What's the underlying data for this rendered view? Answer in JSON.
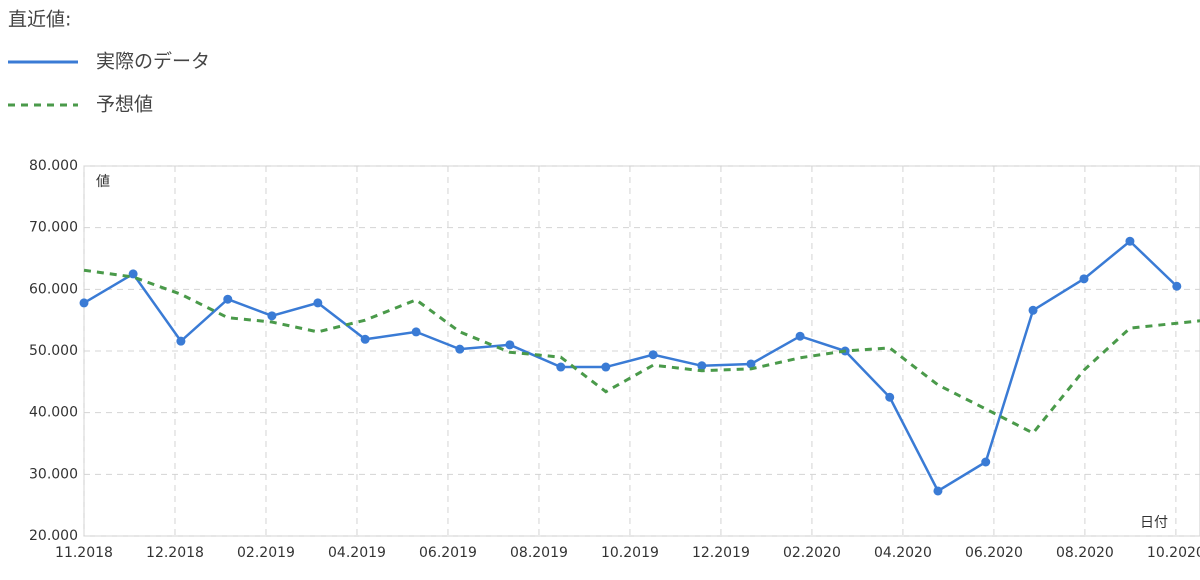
{
  "chart_data": {
    "type": "line",
    "legend_title": "直近値:",
    "y_label": "値",
    "x_label": "日付",
    "xlim": [
      0,
      24.53
    ],
    "ylim": [
      20,
      80
    ],
    "xticks": [
      {
        "value": 0,
        "label": "11.2018"
      },
      {
        "value": 2,
        "label": "12.2018"
      },
      {
        "value": 4,
        "label": "02.2019"
      },
      {
        "value": 6,
        "label": "04.2019"
      },
      {
        "value": 8,
        "label": "06.2019"
      },
      {
        "value": 10,
        "label": "08.2019"
      },
      {
        "value": 12,
        "label": "10.2019"
      },
      {
        "value": 14,
        "label": "12.2019"
      },
      {
        "value": 16,
        "label": "02.2020"
      },
      {
        "value": 18,
        "label": "04.2020"
      },
      {
        "value": 20,
        "label": "06.2020"
      },
      {
        "value": 22,
        "label": "08.2020"
      },
      {
        "value": 24,
        "label": "10.2020"
      }
    ],
    "yticks": [
      {
        "value": 20,
        "label": "20.000"
      },
      {
        "value": 30,
        "label": "30.000"
      },
      {
        "value": 40,
        "label": "40.000"
      },
      {
        "value": 50,
        "label": "50.000"
      },
      {
        "value": 60,
        "label": "60.000"
      },
      {
        "value": 70,
        "label": "70.000"
      },
      {
        "value": 80,
        "label": "80.000"
      }
    ],
    "grid": true,
    "series": [
      {
        "name": "実際のデータ",
        "color": "#3a7bd5",
        "dashed": false,
        "markers": true,
        "x": [
          0,
          1.08,
          2.13,
          3.16,
          4.13,
          5.14,
          6.18,
          7.3,
          8.26,
          9.36,
          10.48,
          11.47,
          12.51,
          13.58,
          14.66,
          15.74,
          16.73,
          17.71,
          18.77,
          19.82,
          20.86,
          21.98,
          22.99,
          24.02
        ],
        "values": [
          57.8,
          62.5,
          51.6,
          58.4,
          55.7,
          57.8,
          51.9,
          53.1,
          50.3,
          51.0,
          47.4,
          47.4,
          49.4,
          47.6,
          47.9,
          52.4,
          50.0,
          42.5,
          27.3,
          32.0,
          56.6,
          61.7,
          67.8,
          60.5
        ]
      },
      {
        "name": "予想値",
        "color": "#4a9a4a",
        "dashed": true,
        "markers": false,
        "x": [
          0,
          1.08,
          2.13,
          3.16,
          4.13,
          5.14,
          6.18,
          7.3,
          8.26,
          9.36,
          10.48,
          11.47,
          12.51,
          13.58,
          14.66,
          15.74,
          16.73,
          17.71,
          18.77,
          19.82,
          20.86,
          21.98,
          22.99,
          24.53
        ],
        "values": [
          63.1,
          62.0,
          59.2,
          55.4,
          54.7,
          53.1,
          55.0,
          58.3,
          53.1,
          49.8,
          49.0,
          43.4,
          47.7,
          46.8,
          47.1,
          48.9,
          50.0,
          50.5,
          44.5,
          40.6,
          36.7,
          46.9,
          53.7,
          54.9
        ]
      }
    ]
  }
}
